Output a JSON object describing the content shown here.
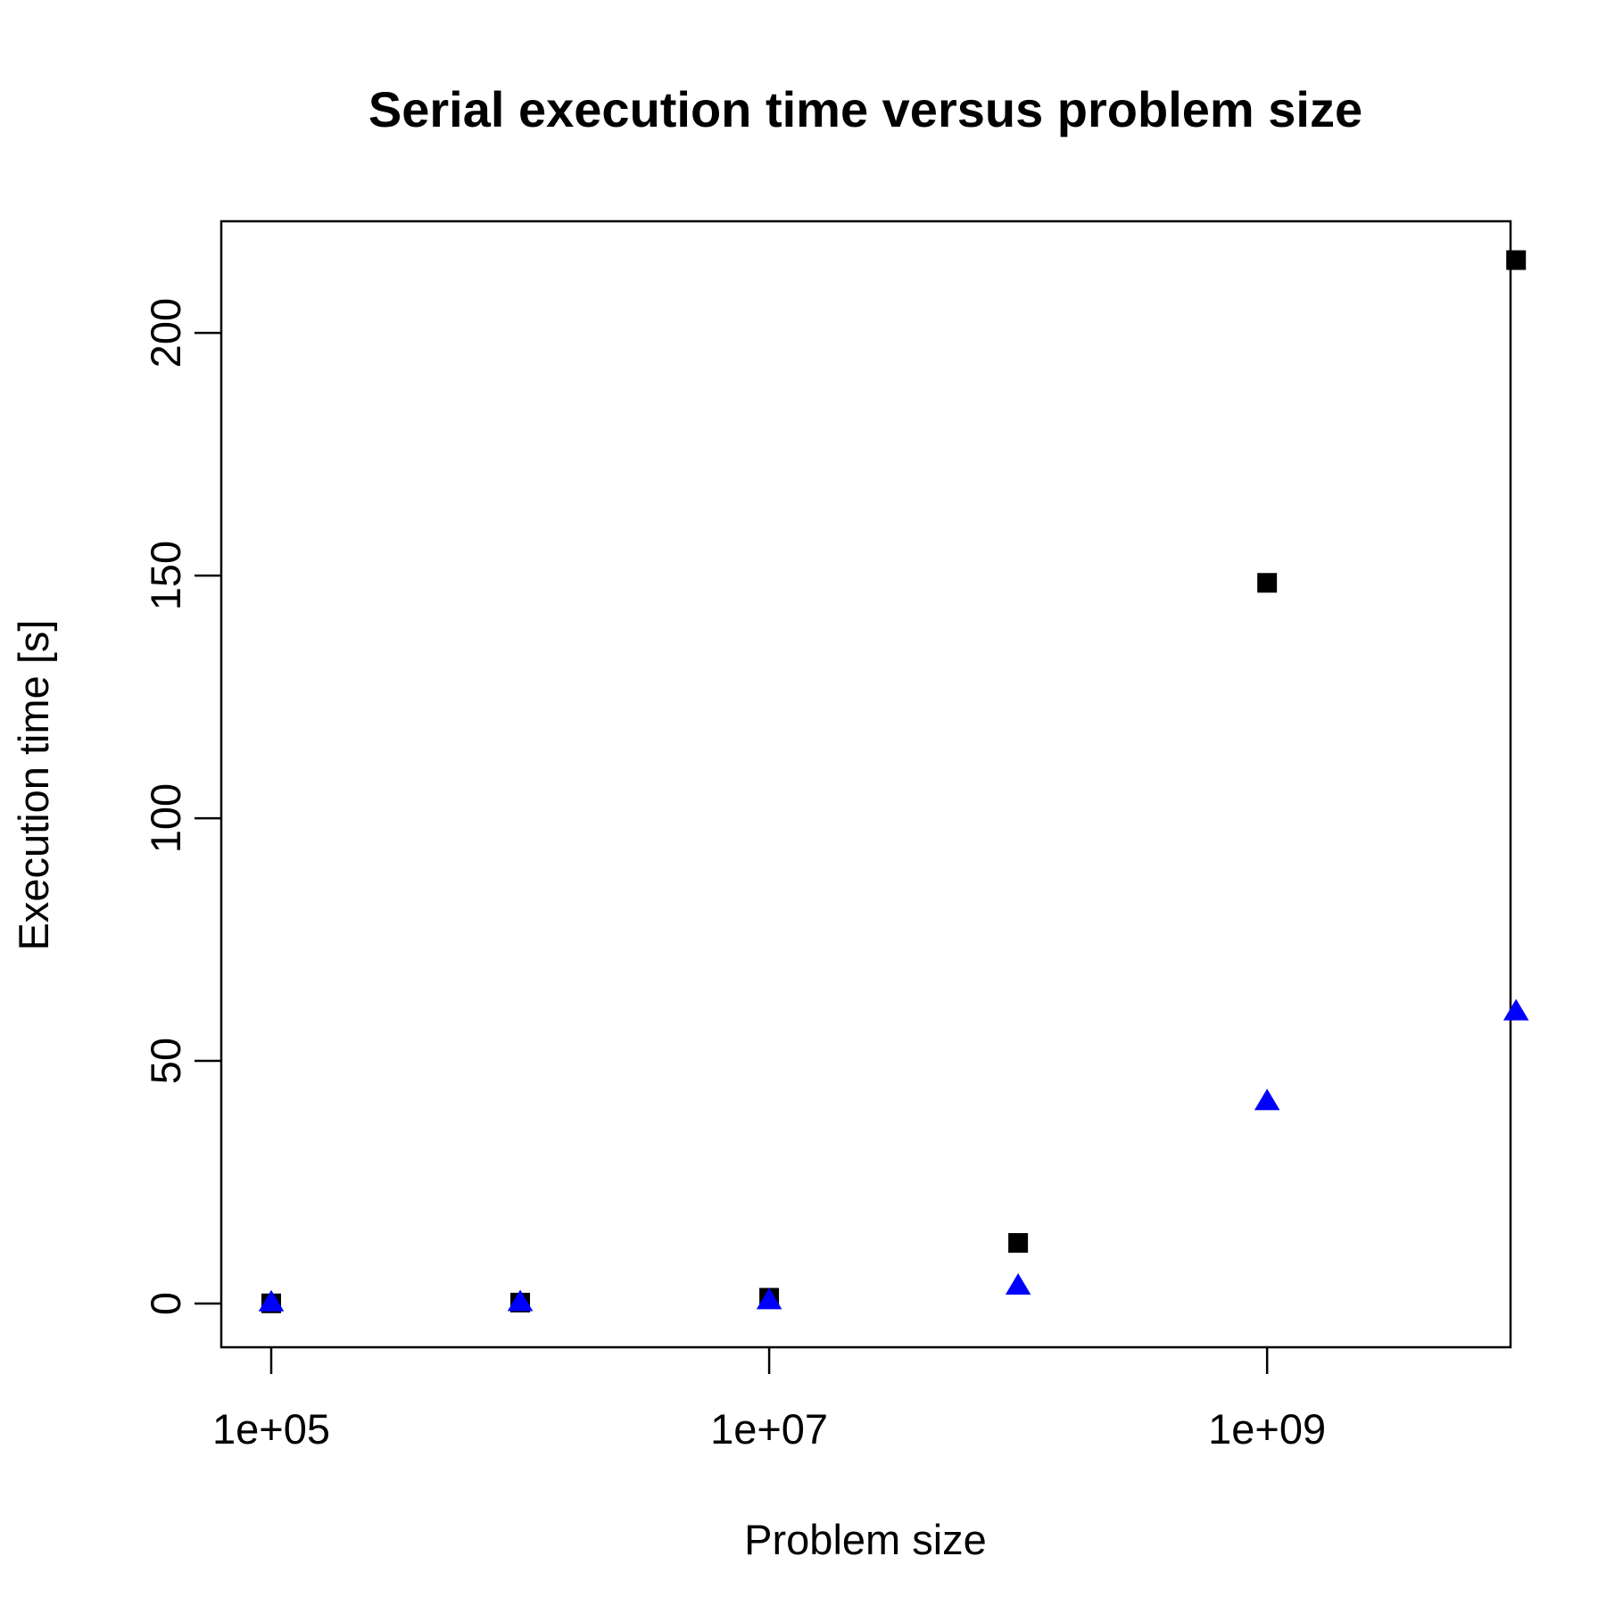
{
  "chart_data": {
    "type": "scatter",
    "title": "Serial execution time versus problem size",
    "xlabel": "Problem size",
    "ylabel": "Execution time [s]",
    "xscale": "log10",
    "xlim": [
      63000,
      9500000000
    ],
    "ylim": [
      -9,
      223
    ],
    "x_ticks": [
      100000,
      10000000,
      1000000000
    ],
    "x_tick_labels": [
      "1e+05",
      "1e+07",
      "1e+09"
    ],
    "y_ticks": [
      0,
      50,
      100,
      150,
      200
    ],
    "y_tick_labels": [
      "0",
      "50",
      "100",
      "150",
      "200"
    ],
    "grid": false,
    "legend": "none",
    "series": [
      {
        "marker": "square",
        "color": "#000000",
        "x": [
          100000,
          1000000,
          10000000,
          100000000,
          1000000000,
          10000000000
        ],
        "y": [
          0.05,
          0.2,
          1.2,
          12.5,
          148.5,
          215
        ]
      },
      {
        "marker": "triangle",
        "color": "#0000ff",
        "x": [
          100000,
          1000000,
          10000000,
          100000000,
          1000000000,
          10000000000
        ],
        "y": [
          0.05,
          0.1,
          0.5,
          3.5,
          41.5,
          60
        ]
      }
    ]
  }
}
